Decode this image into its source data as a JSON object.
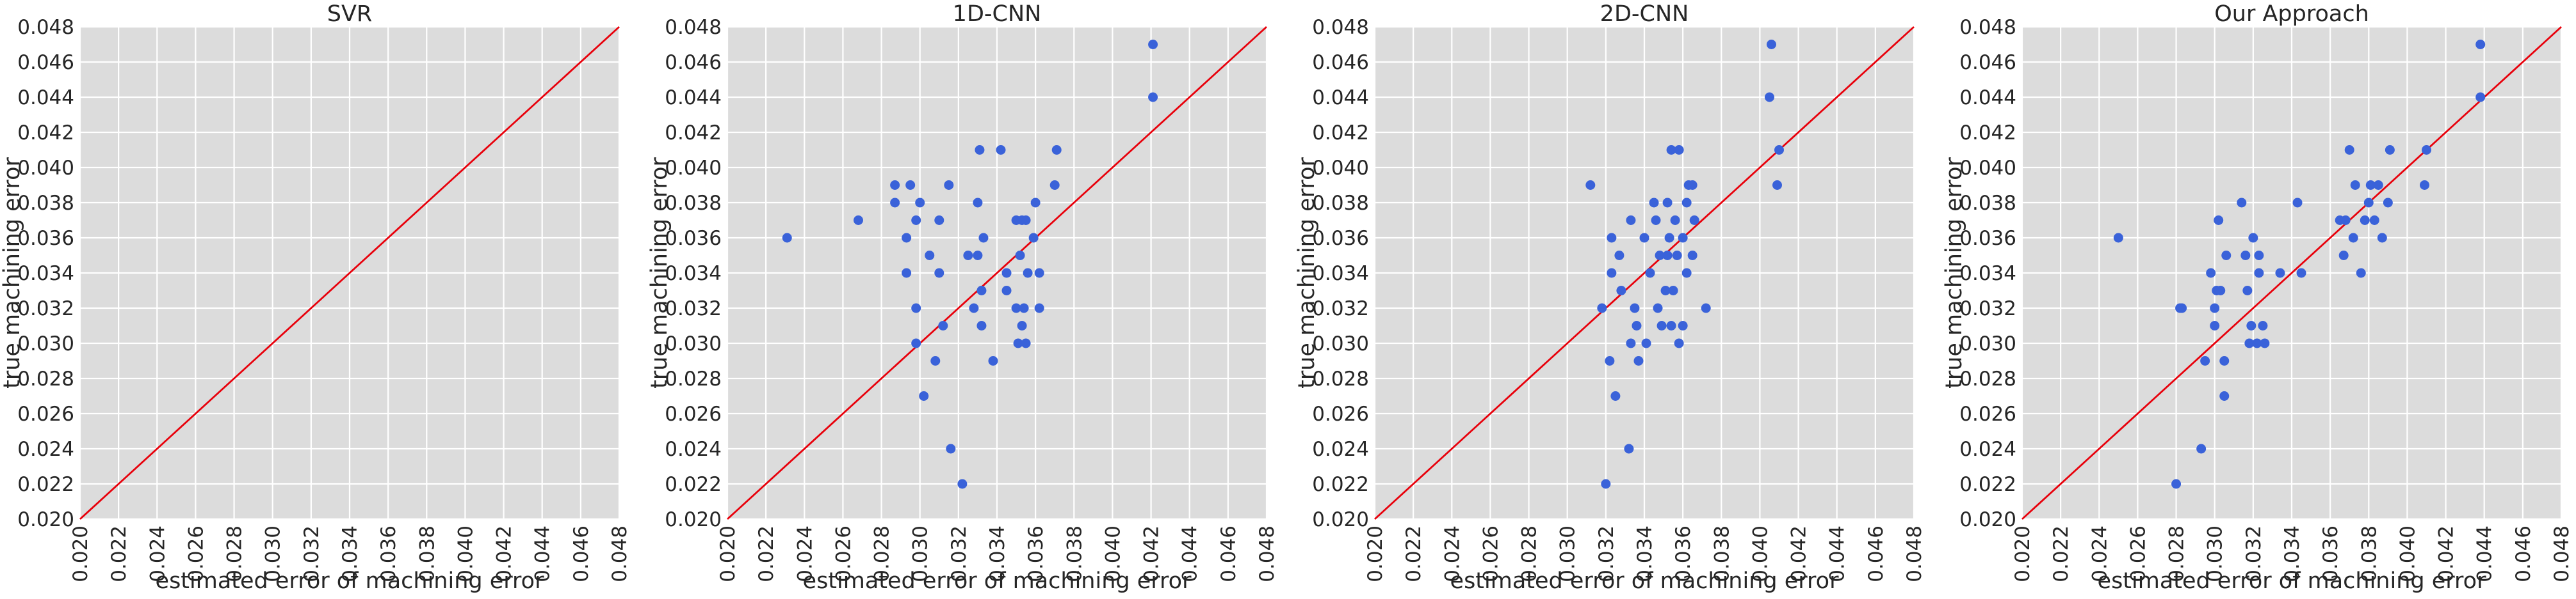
{
  "chart_data": [
    {
      "type": "scatter",
      "title": "SVR",
      "xlabel": "estimated error of machining error",
      "ylabel": "true machining error",
      "xlim": [
        0.02,
        0.048
      ],
      "ylim": [
        0.02,
        0.048
      ],
      "x_ticks": [
        "0.020",
        "0.022",
        "0.024",
        "0.026",
        "0.028",
        "0.030",
        "0.032",
        "0.034",
        "0.036",
        "0.038",
        "0.040",
        "0.042",
        "0.044",
        "0.046",
        "0.048"
      ],
      "y_ticks": [
        "0.020",
        "0.022",
        "0.024",
        "0.026",
        "0.028",
        "0.030",
        "0.032",
        "0.034",
        "0.036",
        "0.038",
        "0.040",
        "0.042",
        "0.044",
        "0.046",
        "0.048"
      ],
      "grid": true,
      "reference_line": "y = x",
      "colors": {
        "points": "#3a62d9",
        "line": "#e8000b",
        "background": "#dcdcdc"
      },
      "points": []
    },
    {
      "type": "scatter",
      "title": "1D-CNN",
      "xlabel": "estimated error of machining error",
      "ylabel": "true machining error",
      "xlim": [
        0.02,
        0.048
      ],
      "ylim": [
        0.02,
        0.048
      ],
      "x_ticks": [
        "0.020",
        "0.022",
        "0.024",
        "0.026",
        "0.028",
        "0.030",
        "0.032",
        "0.034",
        "0.036",
        "0.038",
        "0.040",
        "0.042",
        "0.044",
        "0.046",
        "0.048"
      ],
      "y_ticks": [
        "0.020",
        "0.022",
        "0.024",
        "0.026",
        "0.028",
        "0.030",
        "0.032",
        "0.034",
        "0.036",
        "0.038",
        "0.040",
        "0.042",
        "0.044",
        "0.046",
        "0.048"
      ],
      "grid": true,
      "reference_line": "y = x",
      "colors": {
        "points": "#3a62d9",
        "line": "#e8000b",
        "background": "#dcdcdc"
      },
      "points": [
        [
          0.0231,
          0.036
        ],
        [
          0.0268,
          0.037
        ],
        [
          0.0287,
          0.038
        ],
        [
          0.0287,
          0.039
        ],
        [
          0.0293,
          0.036
        ],
        [
          0.0293,
          0.034
        ],
        [
          0.0295,
          0.039
        ],
        [
          0.0298,
          0.03
        ],
        [
          0.0298,
          0.032
        ],
        [
          0.0298,
          0.037
        ],
        [
          0.03,
          0.038
        ],
        [
          0.0302,
          0.027
        ],
        [
          0.0305,
          0.035
        ],
        [
          0.0308,
          0.029
        ],
        [
          0.031,
          0.034
        ],
        [
          0.031,
          0.037
        ],
        [
          0.0312,
          0.031
        ],
        [
          0.0315,
          0.039
        ],
        [
          0.0316,
          0.024
        ],
        [
          0.0322,
          0.022
        ],
        [
          0.0325,
          0.035
        ],
        [
          0.0328,
          0.032
        ],
        [
          0.033,
          0.035
        ],
        [
          0.033,
          0.038
        ],
        [
          0.0331,
          0.041
        ],
        [
          0.0332,
          0.031
        ],
        [
          0.0332,
          0.033
        ],
        [
          0.0333,
          0.036
        ],
        [
          0.0338,
          0.029
        ],
        [
          0.0342,
          0.041
        ],
        [
          0.0345,
          0.034
        ],
        [
          0.0345,
          0.033
        ],
        [
          0.035,
          0.037
        ],
        [
          0.035,
          0.032
        ],
        [
          0.0351,
          0.03
        ],
        [
          0.0352,
          0.035
        ],
        [
          0.0353,
          0.031
        ],
        [
          0.0353,
          0.037
        ],
        [
          0.0354,
          0.032
        ],
        [
          0.0355,
          0.03
        ],
        [
          0.0355,
          0.037
        ],
        [
          0.0356,
          0.034
        ],
        [
          0.0359,
          0.036
        ],
        [
          0.036,
          0.038
        ],
        [
          0.0362,
          0.032
        ],
        [
          0.0362,
          0.034
        ],
        [
          0.037,
          0.039
        ],
        [
          0.0371,
          0.041
        ],
        [
          0.0421,
          0.044
        ],
        [
          0.0421,
          0.047
        ]
      ]
    },
    {
      "type": "scatter",
      "title": "2D-CNN",
      "xlabel": "estimated error of machining error",
      "ylabel": "true machining error",
      "xlim": [
        0.02,
        0.048
      ],
      "ylim": [
        0.02,
        0.048
      ],
      "x_ticks": [
        "0.020",
        "0.022",
        "0.024",
        "0.026",
        "0.028",
        "0.030",
        "0.032",
        "0.034",
        "0.036",
        "0.038",
        "0.040",
        "0.042",
        "0.044",
        "0.046",
        "0.048"
      ],
      "y_ticks": [
        "0.020",
        "0.022",
        "0.024",
        "0.026",
        "0.028",
        "0.030",
        "0.032",
        "0.034",
        "0.036",
        "0.038",
        "0.040",
        "0.042",
        "0.044",
        "0.046",
        "0.048"
      ],
      "grid": true,
      "reference_line": "y = x",
      "colors": {
        "points": "#3a62d9",
        "line": "#e8000b",
        "background": "#dcdcdc"
      },
      "points": [
        [
          0.0312,
          0.039
        ],
        [
          0.0318,
          0.032
        ],
        [
          0.032,
          0.022
        ],
        [
          0.0322,
          0.029
        ],
        [
          0.0323,
          0.034
        ],
        [
          0.0323,
          0.036
        ],
        [
          0.0325,
          0.027
        ],
        [
          0.0327,
          0.035
        ],
        [
          0.0328,
          0.033
        ],
        [
          0.0332,
          0.024
        ],
        [
          0.0333,
          0.03
        ],
        [
          0.0333,
          0.037
        ],
        [
          0.0335,
          0.032
        ],
        [
          0.0336,
          0.031
        ],
        [
          0.0337,
          0.029
        ],
        [
          0.034,
          0.036
        ],
        [
          0.0341,
          0.03
        ],
        [
          0.0343,
          0.034
        ],
        [
          0.0345,
          0.038
        ],
        [
          0.0346,
          0.037
        ],
        [
          0.0347,
          0.032
        ],
        [
          0.0348,
          0.035
        ],
        [
          0.0349,
          0.031
        ],
        [
          0.0351,
          0.033
        ],
        [
          0.0352,
          0.035
        ],
        [
          0.0352,
          0.038
        ],
        [
          0.0353,
          0.036
        ],
        [
          0.0354,
          0.041
        ],
        [
          0.0354,
          0.031
        ],
        [
          0.0355,
          0.033
        ],
        [
          0.0356,
          0.037
        ],
        [
          0.0357,
          0.035
        ],
        [
          0.0358,
          0.03
        ],
        [
          0.0358,
          0.041
        ],
        [
          0.036,
          0.036
        ],
        [
          0.036,
          0.031
        ],
        [
          0.0362,
          0.034
        ],
        [
          0.0362,
          0.038
        ],
        [
          0.0363,
          0.039
        ],
        [
          0.0365,
          0.035
        ],
        [
          0.0365,
          0.039
        ],
        [
          0.0366,
          0.037
        ],
        [
          0.0372,
          0.032
        ],
        [
          0.0405,
          0.044
        ],
        [
          0.0406,
          0.047
        ],
        [
          0.0409,
          0.039
        ],
        [
          0.041,
          0.041
        ]
      ]
    },
    {
      "type": "scatter",
      "title": "Our Approach",
      "xlabel": "estimated error of machining error",
      "ylabel": "true machining error",
      "xlim": [
        0.02,
        0.048
      ],
      "ylim": [
        0.02,
        0.048
      ],
      "x_ticks": [
        "0.020",
        "0.022",
        "0.024",
        "0.026",
        "0.028",
        "0.030",
        "0.032",
        "0.034",
        "0.036",
        "0.038",
        "0.040",
        "0.042",
        "0.044",
        "0.046",
        "0.048"
      ],
      "y_ticks": [
        "0.020",
        "0.022",
        "0.024",
        "0.026",
        "0.028",
        "0.030",
        "0.032",
        "0.034",
        "0.036",
        "0.038",
        "0.040",
        "0.042",
        "0.044",
        "0.046",
        "0.048"
      ],
      "grid": true,
      "reference_line": "y = x",
      "colors": {
        "points": "#3a62d9",
        "line": "#e8000b",
        "background": "#dcdcdc"
      },
      "points": [
        [
          0.025,
          0.036
        ],
        [
          0.028,
          0.022
        ],
        [
          0.0282,
          0.032
        ],
        [
          0.0283,
          0.032
        ],
        [
          0.0293,
          0.024
        ],
        [
          0.0295,
          0.029
        ],
        [
          0.0298,
          0.034
        ],
        [
          0.03,
          0.031
        ],
        [
          0.03,
          0.032
        ],
        [
          0.0301,
          0.033
        ],
        [
          0.0302,
          0.037
        ],
        [
          0.0303,
          0.033
        ],
        [
          0.0305,
          0.027
        ],
        [
          0.0305,
          0.029
        ],
        [
          0.0306,
          0.035
        ],
        [
          0.0314,
          0.038
        ],
        [
          0.0316,
          0.035
        ],
        [
          0.0317,
          0.033
        ],
        [
          0.0318,
          0.03
        ],
        [
          0.0319,
          0.031
        ],
        [
          0.032,
          0.036
        ],
        [
          0.0322,
          0.03
        ],
        [
          0.0323,
          0.034
        ],
        [
          0.0323,
          0.035
        ],
        [
          0.0325,
          0.031
        ],
        [
          0.0326,
          0.03
        ],
        [
          0.0334,
          0.034
        ],
        [
          0.0343,
          0.038
        ],
        [
          0.0345,
          0.034
        ],
        [
          0.0365,
          0.037
        ],
        [
          0.0367,
          0.035
        ],
        [
          0.0368,
          0.037
        ],
        [
          0.037,
          0.041
        ],
        [
          0.0372,
          0.036
        ],
        [
          0.0373,
          0.039
        ],
        [
          0.0376,
          0.034
        ],
        [
          0.0378,
          0.037
        ],
        [
          0.038,
          0.038
        ],
        [
          0.0381,
          0.039
        ],
        [
          0.0383,
          0.037
        ],
        [
          0.0385,
          0.039
        ],
        [
          0.0387,
          0.036
        ],
        [
          0.039,
          0.038
        ],
        [
          0.0391,
          0.041
        ],
        [
          0.0409,
          0.039
        ],
        [
          0.041,
          0.041
        ],
        [
          0.0438,
          0.044
        ],
        [
          0.0438,
          0.047
        ]
      ]
    }
  ]
}
